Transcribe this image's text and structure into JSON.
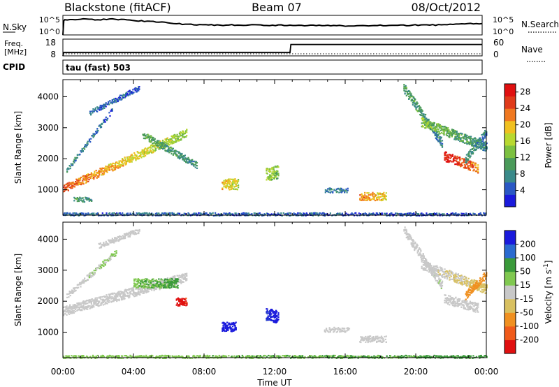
{
  "header": {
    "station": "Blackstone (fitACF)",
    "beam": "Beam 07",
    "date": "08/Oct/2012"
  },
  "sky_panel": {
    "left_label": "N.Sky",
    "right_label": "N.Search",
    "tick_top": "10^5",
    "tick_bottom": "10^0",
    "right_tick_top": "10^5",
    "right_tick_bottom": "10^0"
  },
  "freq_panel": {
    "left_label_line1": "Freq.",
    "left_label_line2": "[MHz]",
    "right_label": "Nave",
    "left_ticks": [
      "18",
      "8"
    ],
    "right_ticks": [
      "60",
      "0"
    ]
  },
  "cpid_panel": {
    "left_label": "CPID",
    "mode_text": "tau (fast) 503"
  },
  "x_axis": {
    "title": "Time UT",
    "ticks": [
      "00:00",
      "04:00",
      "08:00",
      "12:00",
      "16:00",
      "20:00",
      "00:00"
    ],
    "range_hours": [
      0,
      24
    ]
  },
  "colors": {
    "power_scale": [
      "#1a1adc",
      "#2a58c4",
      "#3a8a8a",
      "#4a9a5a",
      "#7cc040",
      "#b8d830",
      "#f0c020",
      "#f07820",
      "#e03a1a",
      "#e01010"
    ],
    "velocity_scale": [
      "#e01010",
      "#f05a1a",
      "#f09020",
      "#d8c060",
      "#c8c8c8",
      "#c8c8c8",
      "#80c850",
      "#3a9a3a",
      "#2a4ac8",
      "#1a1adc"
    ]
  },
  "chart_data": [
    {
      "type": "line",
      "name": "sky_noise_panel",
      "x_range": [
        0,
        24
      ],
      "series": [
        {
          "x": [
            0.0,
            0.05,
            0.1,
            1,
            2,
            3,
            4,
            5,
            6,
            7,
            8,
            9,
            10,
            11,
            12,
            13,
            14,
            15,
            16,
            17,
            18,
            19,
            20,
            21,
            22,
            23,
            24
          ],
          "y_fraction": [
            0.0,
            0.72,
            0.78,
            0.8,
            0.78,
            0.8,
            0.74,
            0.7,
            0.62,
            0.55,
            0.52,
            0.5,
            0.5,
            0.52,
            0.5,
            0.5,
            0.48,
            0.48,
            0.47,
            0.48,
            0.48,
            0.49,
            0.5,
            0.5,
            0.52,
            0.56,
            0.58
          ]
        }
      ]
    },
    {
      "type": "line",
      "name": "frequency_panel",
      "x_range": [
        0,
        24
      ],
      "ylabel": "Freq. [MHz]",
      "ylim": [
        8,
        18
      ],
      "series": [
        {
          "x": [
            0,
            0.05,
            13.0,
            13.05,
            24
          ],
          "y": [
            8,
            10.0,
            10.0,
            14.8,
            14.8
          ]
        }
      ]
    },
    {
      "type": "heatmap",
      "name": "power",
      "xlabel": "Time UT",
      "ylabel": "Slant Range [km]",
      "xlim": [
        0,
        24
      ],
      "ylim": [
        180,
        4550
      ],
      "y_ticks": [
        1000,
        2000,
        3000,
        4000
      ],
      "colorbar_label": "Power [dB]",
      "colorbar_ticks": [
        4,
        8,
        12,
        16,
        20,
        24,
        28
      ],
      "colorbar_range": [
        0,
        30
      ],
      "regions": [
        {
          "t": [
            0.0,
            7.0
          ],
          "r_start": 1050,
          "r_end": 2850,
          "width": 260,
          "v": [
            24,
            14
          ]
        },
        {
          "t": [
            0.2,
            2.8
          ],
          "r_start": 1650,
          "r_end": 3600,
          "width": 150,
          "v": [
            8,
            5
          ]
        },
        {
          "t": [
            1.5,
            4.3
          ],
          "r_start": 3500,
          "r_end": 4300,
          "width": 160,
          "v": [
            6,
            4
          ]
        },
        {
          "t": [
            4.5,
            7.6
          ],
          "r_start": 2800,
          "r_end": 1800,
          "width": 220,
          "v": [
            12,
            8
          ]
        },
        {
          "t": [
            0.6,
            1.6
          ],
          "r_start": 700,
          "r_end": 700,
          "width": 150,
          "v": [
            10,
            8
          ]
        },
        {
          "t": [
            9.0,
            9.9
          ],
          "r_start": 1200,
          "r_end": 1200,
          "width": 350,
          "v": [
            20,
            16
          ]
        },
        {
          "t": [
            11.5,
            12.2
          ],
          "r_start": 1500,
          "r_end": 1600,
          "width": 420,
          "v": [
            16,
            12
          ]
        },
        {
          "t": [
            14.8,
            16.2
          ],
          "r_start": 1000,
          "r_end": 1000,
          "width": 150,
          "v": [
            8,
            6
          ]
        },
        {
          "t": [
            16.8,
            18.3
          ],
          "r_start": 800,
          "r_end": 800,
          "width": 260,
          "v": [
            22,
            18
          ]
        },
        {
          "t": [
            19.3,
            21.5
          ],
          "r_start": 4300,
          "r_end": 2500,
          "width": 300,
          "v": [
            10,
            8
          ]
        },
        {
          "t": [
            20.3,
            24.0
          ],
          "r_start": 3200,
          "r_end": 2400,
          "width": 300,
          "v": [
            14,
            8
          ]
        },
        {
          "t": [
            21.6,
            23.5
          ],
          "r_start": 2100,
          "r_end": 1700,
          "width": 300,
          "v": [
            28,
            22
          ]
        },
        {
          "t": [
            22.8,
            24.0
          ],
          "r_start": 2000,
          "r_end": 2900,
          "width": 250,
          "v": [
            10,
            6
          ]
        },
        {
          "t": [
            0.0,
            24.0
          ],
          "r_start": 230,
          "r_end": 230,
          "width": 90,
          "v": [
            6,
            4
          ]
        }
      ]
    },
    {
      "type": "heatmap",
      "name": "velocity",
      "xlabel": "Time UT",
      "ylabel": "Slant Range [km]",
      "xlim": [
        0,
        24
      ],
      "ylim": [
        180,
        4550
      ],
      "y_ticks": [
        1000,
        2000,
        3000,
        4000
      ],
      "colorbar_label": "Velocity [m s^-1]",
      "colorbar_ticks": [
        "-200",
        "-100",
        "-50",
        "-15",
        "15",
        "50",
        "100",
        "200"
      ],
      "regions": [
        {
          "t": [
            0.0,
            7.0
          ],
          "r_start": 1700,
          "r_end": 2800,
          "width": 300,
          "v": [
            0,
            0
          ]
        },
        {
          "t": [
            0.2,
            3.0
          ],
          "r_start": 2200,
          "r_end": 3600,
          "width": 180,
          "v": [
            0,
            20
          ]
        },
        {
          "t": [
            2.0,
            4.3
          ],
          "r_start": 3800,
          "r_end": 4300,
          "width": 160,
          "v": [
            0,
            0
          ]
        },
        {
          "t": [
            4.0,
            6.5
          ],
          "r_start": 2600,
          "r_end": 2600,
          "width": 300,
          "v": [
            40,
            60
          ]
        },
        {
          "t": [
            6.4,
            7.0
          ],
          "r_start": 2000,
          "r_end": 2000,
          "width": 250,
          "v": [
            -220,
            -200
          ]
        },
        {
          "t": [
            9.0,
            9.8
          ],
          "r_start": 1200,
          "r_end": 1200,
          "width": 300,
          "v": [
            210,
            220
          ]
        },
        {
          "t": [
            11.5,
            12.2
          ],
          "r_start": 1600,
          "r_end": 1500,
          "width": 400,
          "v": [
            200,
            220
          ]
        },
        {
          "t": [
            14.8,
            16.2
          ],
          "r_start": 1100,
          "r_end": 1100,
          "width": 150,
          "v": [
            0,
            0
          ]
        },
        {
          "t": [
            16.8,
            18.3
          ],
          "r_start": 800,
          "r_end": 800,
          "width": 200,
          "v": [
            0,
            0
          ]
        },
        {
          "t": [
            19.3,
            21.5
          ],
          "r_start": 4300,
          "r_end": 2500,
          "width": 300,
          "v": [
            0,
            10
          ]
        },
        {
          "t": [
            20.3,
            24.0
          ],
          "r_start": 3200,
          "r_end": 2400,
          "width": 300,
          "v": [
            0,
            -30
          ]
        },
        {
          "t": [
            21.6,
            23.5
          ],
          "r_start": 2100,
          "r_end": 1800,
          "width": 300,
          "v": [
            0,
            0
          ]
        },
        {
          "t": [
            22.8,
            24.0
          ],
          "r_start": 2200,
          "r_end": 2900,
          "width": 250,
          "v": [
            -60,
            -80
          ]
        },
        {
          "t": [
            0.0,
            24.0
          ],
          "r_start": 230,
          "r_end": 230,
          "width": 90,
          "v": [
            30,
            60
          ]
        }
      ]
    }
  ]
}
